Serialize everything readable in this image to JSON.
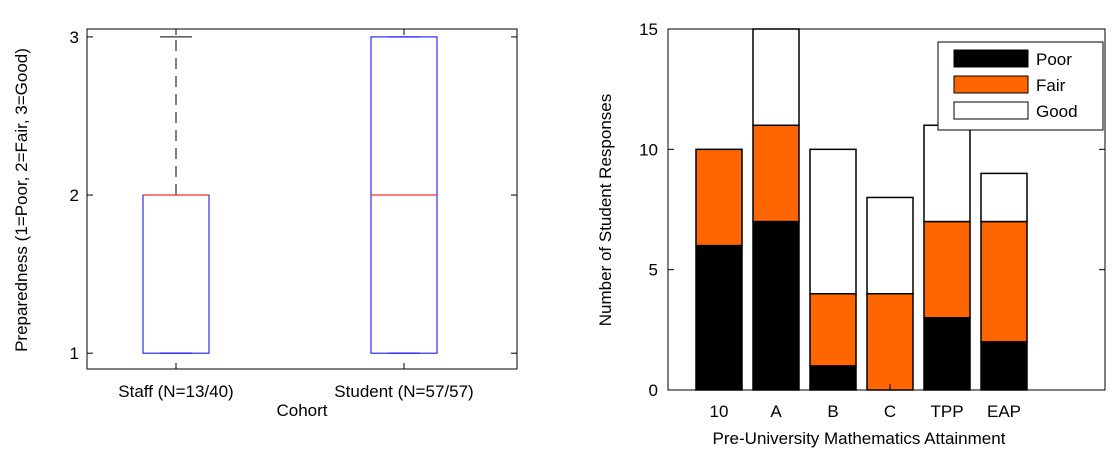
{
  "chart_data": [
    {
      "type": "box",
      "xlabel": "Cohort",
      "ylabel": "Preparedness (1=Poor, 2=Fair, 3=Good)",
      "ylim": [
        0.9,
        3.05
      ],
      "yticks": [
        "1",
        "2",
        "3"
      ],
      "categories": [
        "Staff (N=13/40)",
        "Student (N=57/57)"
      ],
      "boxes": [
        {
          "min": 1,
          "q1": 1,
          "median": 2,
          "q3": 2,
          "max": 3
        },
        {
          "min": 1,
          "q1": 1,
          "median": 2,
          "q3": 3,
          "max": 3
        }
      ],
      "colors": {
        "box": "#0000ff",
        "median": "#ff0000",
        "whisker": "#000000"
      },
      "grid": false
    },
    {
      "type": "bar",
      "stacked": true,
      "xlabel": "Pre-University Mathematics Attainment",
      "ylabel": "Number of Student Responses",
      "ylim": [
        0,
        15
      ],
      "yticks": [
        "0",
        "5",
        "10",
        "15"
      ],
      "categories": [
        "10",
        "A",
        "B",
        "C",
        "TPP",
        "EAP"
      ],
      "series": [
        {
          "name": "Poor",
          "color": "#000000",
          "values": [
            6,
            7,
            1,
            0,
            3,
            2
          ]
        },
        {
          "name": "Fair",
          "color": "#ff6600",
          "values": [
            4,
            4,
            3,
            4,
            4,
            5
          ]
        },
        {
          "name": "Good",
          "color": "#ffffff",
          "values": [
            0,
            4,
            6,
            4,
            4,
            2
          ]
        }
      ],
      "legend": "top-right",
      "grid": false
    }
  ]
}
